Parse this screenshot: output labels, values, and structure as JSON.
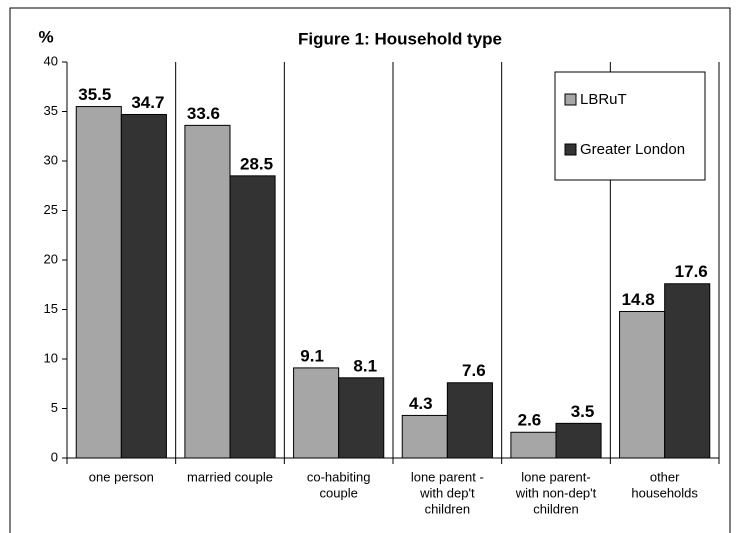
{
  "chart_data": {
    "type": "bar",
    "title": "Figure 1: Household type",
    "y_label": "%",
    "categories": [
      [
        "one person"
      ],
      [
        "married couple"
      ],
      [
        "co-habiting",
        "couple"
      ],
      [
        "lone parent -",
        "with dep't",
        "children"
      ],
      [
        "lone parent-",
        "with non-dep't",
        "children"
      ],
      [
        "other",
        "households"
      ]
    ],
    "series": [
      {
        "name": "LBRuT",
        "color": "#a6a6a6",
        "values": [
          35.5,
          33.6,
          9.1,
          4.3,
          2.6,
          14.8
        ]
      },
      {
        "name": "Greater London",
        "color": "#333333",
        "values": [
          34.7,
          28.5,
          8.1,
          7.6,
          3.5,
          17.6
        ]
      }
    ],
    "ylim": [
      0,
      40
    ],
    "yticks": [
      0,
      5,
      10,
      15,
      20,
      25,
      30,
      35,
      40
    ],
    "legend": "upper right"
  }
}
